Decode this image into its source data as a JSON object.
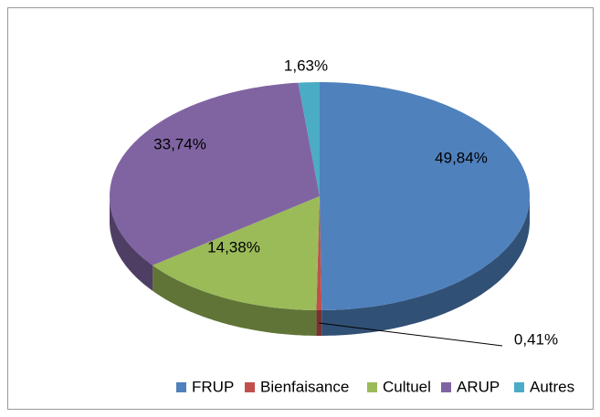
{
  "chart_data": {
    "type": "pie",
    "three_d": true,
    "categories": [
      "FRUP",
      "Bienfaisance",
      "Cultuel",
      "ARUP",
      "Autres"
    ],
    "values": [
      49.84,
      0.41,
      14.38,
      33.74,
      1.63
    ],
    "value_labels": [
      "49,84%",
      "0,41%",
      "14,38%",
      "33,74%",
      "1,63%"
    ],
    "colors": [
      "#4f81bd",
      "#c0504d",
      "#9bbb59",
      "#8064a2",
      "#4bacc6"
    ],
    "legend": "bottom"
  }
}
